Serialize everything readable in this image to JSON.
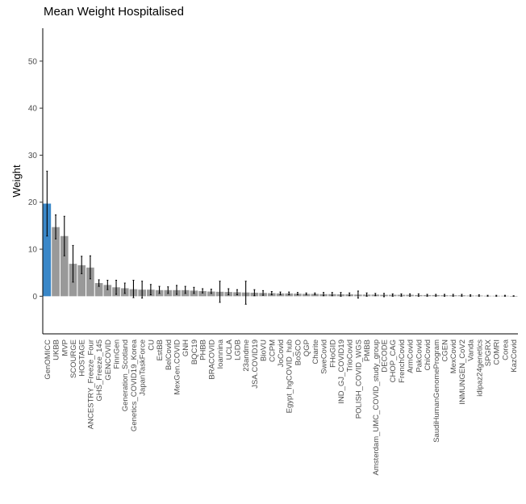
{
  "chart_data": {
    "type": "bar",
    "title": "Mean Weight Hospitalised",
    "xlabel": "",
    "ylabel": "Weight",
    "ylim": [
      -8,
      57
    ],
    "yticks": [
      0,
      10,
      20,
      30,
      40,
      50
    ],
    "grid": false,
    "legend": "none",
    "colors": {
      "highlight": "#3a87c8",
      "default": "#999999",
      "error_bar": "#000000",
      "axis": "#000000"
    },
    "highlight_category": "GenOMICC",
    "categories": [
      "GenOMICC",
      "UKBB",
      "MVP",
      "SCOURGE",
      "HOSTAGE",
      "ANCESTRY_Freeze_Four",
      "GHS_Freeze_145",
      "GENCOVID",
      "FinnGen",
      "Generation_Scotland",
      "Genetics_COVID19_Korea",
      "JapanTaskForce",
      "CU",
      "EstBB",
      "BelCovid",
      "MexGen.COVID",
      "GNH",
      "BQC19",
      "PHBB",
      "BRACOVID",
      "Ioannina",
      "UCLA",
      "LGDB",
      "23andme",
      "JSA.COVID19",
      "BioVU",
      "CCPM",
      "JoCovid",
      "Egypt_hgCOVID_hub",
      "BoSCO",
      "QGP",
      "Charite",
      "SweCovid",
      "FHoGID",
      "IND_GJ_COVID19",
      "TrioCovid",
      "POLISH_COVID_WGS",
      "PMBB",
      "Amsterdam_UMC_COVID_study_group",
      "DECODE",
      "CHOP_CAG",
      "FrenchCovid",
      "ArmCovid",
      "PakCovid",
      "ChiCovid",
      "SaudiHumanGenomeProgram",
      "CGEN",
      "MexCovid",
      "INMUNGEN_CoV2",
      "Vanda",
      "idipaz24genetics",
      "SPGRX",
      "COMRI",
      "Corea",
      "KazCovid"
    ],
    "values": [
      19.7,
      14.7,
      12.8,
      6.9,
      6.6,
      6.1,
      2.8,
      2.4,
      1.9,
      1.7,
      1.5,
      1.4,
      1.4,
      1.3,
      1.3,
      1.3,
      1.3,
      1.2,
      1.1,
      1.0,
      0.95,
      0.9,
      0.85,
      0.8,
      0.75,
      0.7,
      0.65,
      0.6,
      0.6,
      0.55,
      0.5,
      0.5,
      0.45,
      0.45,
      0.4,
      0.4,
      0.35,
      0.35,
      0.35,
      0.3,
      0.3,
      0.3,
      0.3,
      0.25,
      0.25,
      0.25,
      0.2,
      0.2,
      0.2,
      0.15,
      0.15,
      0.1,
      0.1,
      0.1,
      0.05
    ],
    "error_low": [
      12.8,
      12.2,
      8.6,
      3.0,
      4.8,
      3.7,
      2.1,
      1.4,
      0.4,
      0.6,
      -0.3,
      -0.4,
      0.3,
      0.6,
      0.6,
      0.4,
      0.6,
      0.6,
      0.7,
      0.6,
      -1.3,
      0.3,
      0.3,
      -1.7,
      0.1,
      0.2,
      0.3,
      0.3,
      0.3,
      0.3,
      0.3,
      0.3,
      0.1,
      0.1,
      0.0,
      0.1,
      -0.4,
      0.0,
      0.1,
      -0.1,
      0.0,
      0.0,
      0.0,
      0.0,
      0.0,
      0.0,
      0.0,
      0.0,
      0.0,
      0.0,
      0.0,
      0.0,
      0.0,
      0.0,
      0.0
    ],
    "error_high": [
      26.6,
      17.3,
      17.0,
      10.8,
      8.5,
      8.6,
      3.5,
      3.4,
      3.4,
      2.8,
      3.4,
      3.2,
      2.5,
      2.1,
      2.0,
      2.3,
      2.1,
      1.9,
      1.6,
      1.5,
      3.2,
      1.6,
      1.4,
      3.2,
      1.4,
      1.2,
      1.0,
      0.9,
      0.9,
      0.8,
      0.7,
      0.7,
      0.8,
      0.8,
      0.8,
      0.7,
      1.1,
      0.7,
      0.6,
      0.6,
      0.5,
      0.5,
      0.5,
      0.5,
      0.4,
      0.4,
      0.4,
      0.4,
      0.4,
      0.3,
      0.3,
      0.2,
      0.2,
      0.2,
      0.1
    ]
  }
}
